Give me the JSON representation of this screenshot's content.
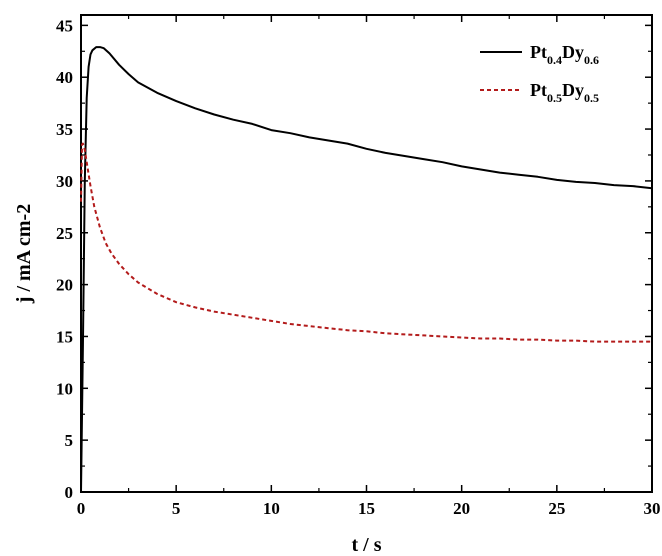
{
  "chart_data": {
    "type": "line",
    "xlabel": "t / s",
    "ylabel": "j / mA cm-2",
    "xlim": [
      0,
      30
    ],
    "ylim": [
      0,
      46
    ],
    "xticks": [
      0,
      5,
      10,
      15,
      20,
      25,
      30
    ],
    "yticks": [
      0,
      5,
      10,
      15,
      20,
      25,
      30,
      35,
      40,
      45
    ],
    "grid": false,
    "legend_position": "top-right",
    "series": [
      {
        "name": "Pt0.4Dy0.6",
        "legend": {
          "el1": "Pt",
          "sub1": "0.4",
          "el2": "Dy",
          "sub2": "0.6"
        },
        "color": "#000000",
        "style": "solid",
        "x": [
          0,
          0.1,
          0.2,
          0.3,
          0.4,
          0.5,
          0.6,
          0.8,
          1.0,
          1.2,
          1.5,
          2,
          2.5,
          3,
          4,
          5,
          6,
          7,
          8,
          9,
          10,
          11,
          12,
          13,
          14,
          15,
          16,
          17,
          18,
          19,
          20,
          21,
          22,
          23,
          24,
          25,
          26,
          27,
          28,
          29,
          30
        ],
        "y": [
          0,
          14,
          30,
          38,
          41,
          42.2,
          42.6,
          42.9,
          42.9,
          42.8,
          42.3,
          41.2,
          40.3,
          39.5,
          38.5,
          37.7,
          37.0,
          36.4,
          35.9,
          35.5,
          34.9,
          34.6,
          34.2,
          33.9,
          33.6,
          33.1,
          32.7,
          32.4,
          32.1,
          31.8,
          31.4,
          31.1,
          30.8,
          30.6,
          30.4,
          30.1,
          29.9,
          29.8,
          29.6,
          29.5,
          29.3
        ]
      },
      {
        "name": "Pt0.5Dy0.5",
        "legend": {
          "el1": "Pt",
          "sub1": "0.5",
          "el2": "Dy",
          "sub2": "0.5"
        },
        "color": "#b31b1b",
        "style": "dashed",
        "x": [
          0,
          0.05,
          0.1,
          0.2,
          0.3,
          0.5,
          0.7,
          1.0,
          1.3,
          1.6,
          2,
          2.5,
          3,
          4,
          5,
          6,
          7,
          8,
          9,
          10,
          11,
          12,
          13,
          14,
          15,
          16,
          17,
          18,
          19,
          20,
          21,
          22,
          23,
          24,
          25,
          26,
          27,
          28,
          29,
          30
        ],
        "y": [
          28,
          33.5,
          33.6,
          33.0,
          31.8,
          29.5,
          27.5,
          25.5,
          24.0,
          23.0,
          22.0,
          21.0,
          20.2,
          19.1,
          18.3,
          17.8,
          17.4,
          17.1,
          16.8,
          16.5,
          16.2,
          16.0,
          15.8,
          15.6,
          15.5,
          15.3,
          15.2,
          15.1,
          15.0,
          14.9,
          14.8,
          14.8,
          14.7,
          14.7,
          14.6,
          14.6,
          14.5,
          14.5,
          14.5,
          14.5
        ]
      }
    ]
  }
}
